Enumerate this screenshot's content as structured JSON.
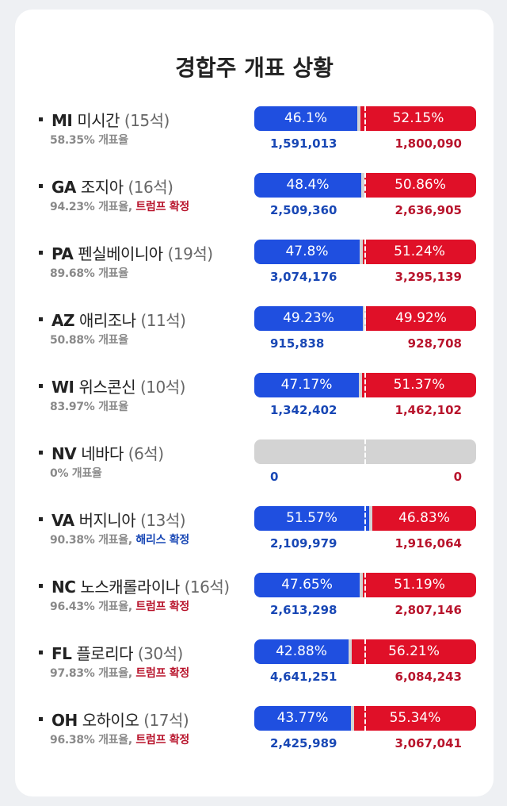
{
  "title": "경합주 개표 상황",
  "colors": {
    "harris": "#1f4fe0",
    "trump": "#e01028",
    "pending": "#d3d3d3"
  },
  "states": [
    {
      "abbr": "MI",
      "name": "미시간",
      "seats": "(15석)",
      "counted": "58.35% 개표율",
      "confirmed": "",
      "confirmed_by": "",
      "blue_pct": "46.1%",
      "red_pct": "52.15%",
      "blue_share": 46.1,
      "red_share": 52.15,
      "blue_votes": "1,591,013",
      "red_votes": "1,800,090"
    },
    {
      "abbr": "GA",
      "name": "조지아",
      "seats": "(16석)",
      "counted": "94.23% 개표율,",
      "confirmed": "트럼프 확정",
      "confirmed_by": "trump",
      "blue_pct": "48.4%",
      "red_pct": "50.86%",
      "blue_share": 48.4,
      "red_share": 50.86,
      "blue_votes": "2,509,360",
      "red_votes": "2,636,905"
    },
    {
      "abbr": "PA",
      "name": "펜실베이니아",
      "seats": "(19석)",
      "counted": "89.68% 개표율",
      "confirmed": "",
      "confirmed_by": "",
      "blue_pct": "47.8%",
      "red_pct": "51.24%",
      "blue_share": 47.8,
      "red_share": 51.24,
      "blue_votes": "3,074,176",
      "red_votes": "3,295,139"
    },
    {
      "abbr": "AZ",
      "name": "애리조나",
      "seats": "(11석)",
      "counted": "50.88% 개표율",
      "confirmed": "",
      "confirmed_by": "",
      "blue_pct": "49.23%",
      "red_pct": "49.92%",
      "blue_share": 49.23,
      "red_share": 49.92,
      "blue_votes": "915,838",
      "red_votes": "928,708"
    },
    {
      "abbr": "WI",
      "name": "위스콘신",
      "seats": "(10석)",
      "counted": "83.97% 개표율",
      "confirmed": "",
      "confirmed_by": "",
      "blue_pct": "47.17%",
      "red_pct": "51.37%",
      "blue_share": 47.17,
      "red_share": 51.37,
      "blue_votes": "1,342,402",
      "red_votes": "1,462,102"
    },
    {
      "abbr": "NV",
      "name": "네바다",
      "seats": "(6석)",
      "counted": "0% 개표율",
      "confirmed": "",
      "confirmed_by": "",
      "blue_pct": "",
      "red_pct": "",
      "blue_share": 0,
      "red_share": 0,
      "blue_votes": "0",
      "red_votes": "0"
    },
    {
      "abbr": "VA",
      "name": "버지니아",
      "seats": "(13석)",
      "counted": "90.38% 개표율,",
      "confirmed": "해리스 확정",
      "confirmed_by": "harris",
      "blue_pct": "51.57%",
      "red_pct": "46.83%",
      "blue_share": 51.57,
      "red_share": 46.83,
      "blue_votes": "2,109,979",
      "red_votes": "1,916,064"
    },
    {
      "abbr": "NC",
      "name": "노스캐롤라이나",
      "seats": "(16석)",
      "counted": "96.43% 개표율,",
      "confirmed": "트럼프 확정",
      "confirmed_by": "trump",
      "blue_pct": "47.65%",
      "red_pct": "51.19%",
      "blue_share": 47.65,
      "red_share": 51.19,
      "blue_votes": "2,613,298",
      "red_votes": "2,807,146"
    },
    {
      "abbr": "FL",
      "name": "플로리다",
      "seats": "(30석)",
      "counted": "97.83% 개표율,",
      "confirmed": "트럼프 확정",
      "confirmed_by": "trump",
      "blue_pct": "42.88%",
      "red_pct": "56.21%",
      "blue_share": 42.88,
      "red_share": 56.21,
      "blue_votes": "4,641,251",
      "red_votes": "6,084,243"
    },
    {
      "abbr": "OH",
      "name": "오하이오",
      "seats": "(17석)",
      "counted": "96.38% 개표율,",
      "confirmed": "트럼프 확정",
      "confirmed_by": "trump",
      "blue_pct": "43.77%",
      "red_pct": "55.34%",
      "blue_share": 43.77,
      "red_share": 55.34,
      "blue_votes": "2,425,989",
      "red_votes": "3,067,041"
    }
  ]
}
